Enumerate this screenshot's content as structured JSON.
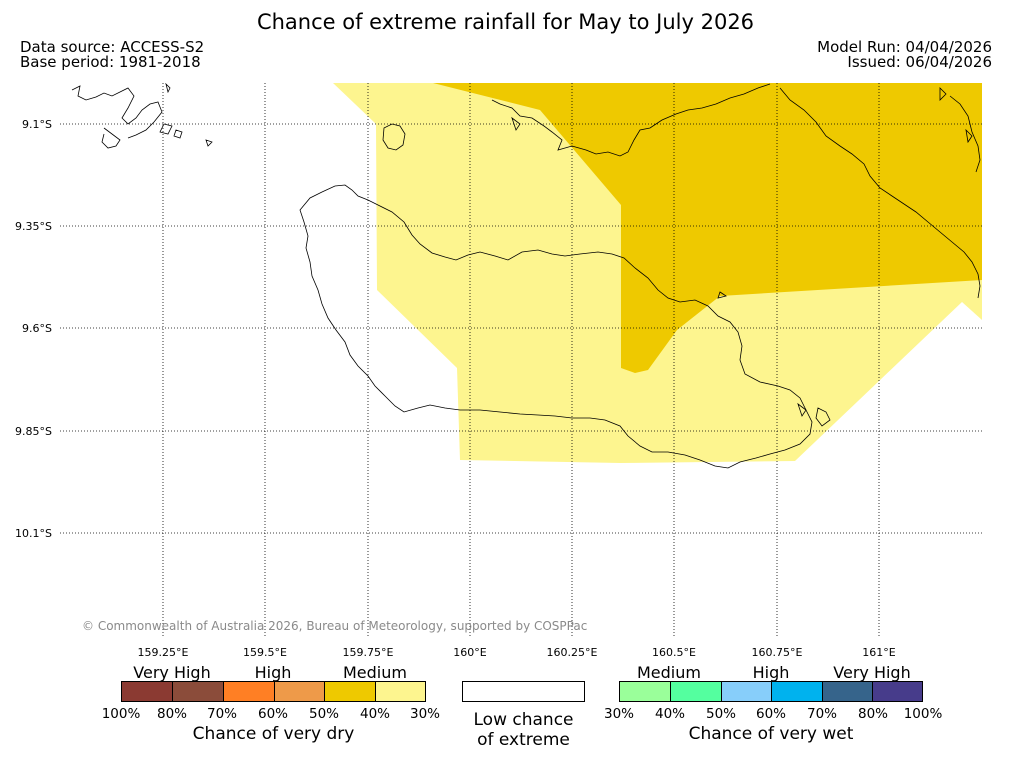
{
  "header": {
    "title": "Chance of extreme rainfall for May to July 2026",
    "data_source": "Data source: ACCESS-S2",
    "base_period": "Base period: 1981-2018",
    "model_run": "Model Run: 04/04/2026",
    "issued": "Issued: 06/04/2026"
  },
  "map": {
    "lat_labels": [
      "9.1°S",
      "9.35°S",
      "9.6°S",
      "9.85°S",
      "10.1°S"
    ],
    "lon_labels": [
      "159.25°E",
      "159.5°E",
      "159.75°E",
      "160°E",
      "160.25°E",
      "160.5°E",
      "160.75°E",
      "161°E"
    ],
    "copyright": "© Commonwealth of Australia 2026, Bureau of Meteorology, supported by COSPPac",
    "colors": {
      "medium_dry_30_40": "#fdf58f",
      "medium_dry_40_50": "#eec900",
      "coastline": "#000000",
      "grid": "#000000"
    }
  },
  "legend": {
    "dry": {
      "group_labels": [
        "Very High",
        "High",
        "Medium"
      ],
      "colors": [
        "#8b3a32",
        "#8b4c3a",
        "#ff7f24",
        "#ee9a49",
        "#eec900",
        "#fdf58f"
      ],
      "ticks": [
        "100%",
        "80%",
        "70%",
        "60%",
        "50%",
        "40%",
        "30%"
      ],
      "caption": "Chance of very dry"
    },
    "low": {
      "caption_line1": "Low chance",
      "caption_line2": "of extreme"
    },
    "wet": {
      "group_labels": [
        "Medium",
        "High",
        "Very High"
      ],
      "colors": [
        "#9aff9a",
        "#54ff9f",
        "#87cefa",
        "#00b2ee",
        "#36648b",
        "#473c8b"
      ],
      "ticks": [
        "30%",
        "40%",
        "50%",
        "60%",
        "70%",
        "80%",
        "100%"
      ],
      "caption": "Chance of very wet"
    }
  }
}
